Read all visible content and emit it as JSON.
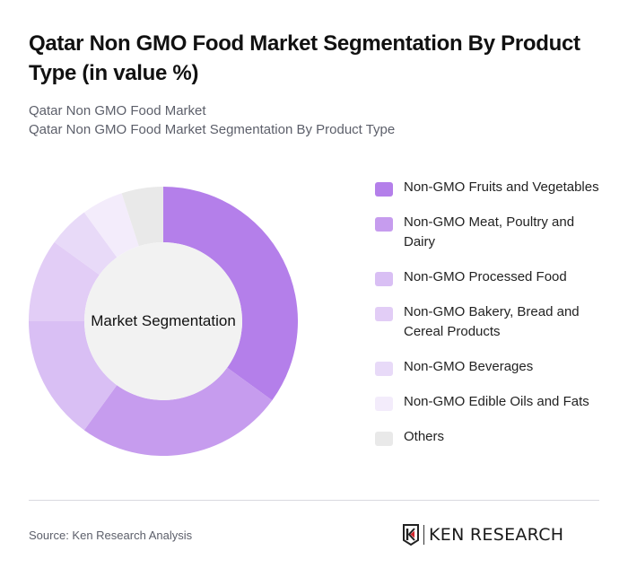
{
  "header": {
    "title": "Qatar Non GMO Food Market Segmentation By Product Type (in value %)",
    "subtitle_line1": "Qatar Non GMO Food Market",
    "subtitle_line2": "Qatar Non GMO Food Market Segmentation By Product Type"
  },
  "chart_data": {
    "type": "pie",
    "subtype": "donut",
    "title": "Qatar Non GMO Food Market Segmentation By Product Type (in value %)",
    "center_label": "Market Segmentation",
    "categories": [
      "Non-GMO Fruits and Vegetables",
      "Non-GMO Meat, Poultry and Dairy",
      "Non-GMO Processed Food",
      "Non-GMO Bakery, Bread and Cereal Products",
      "Non-GMO Beverages",
      "Non-GMO Edible Oils and Fats",
      "Others"
    ],
    "values": [
      35,
      25,
      15,
      10,
      5,
      5,
      5
    ],
    "colors": [
      "#b47fea",
      "#c69cee",
      "#d9bff4",
      "#e2cdf6",
      "#e8daf8",
      "#f3ecfb",
      "#e9e9e9"
    ],
    "legend_position": "right",
    "start_angle_deg": 0,
    "direction": "clockwise"
  },
  "legend": {
    "items": [
      {
        "label": "Non-GMO Fruits and Vegetables",
        "color": "#b47fea"
      },
      {
        "label": "Non-GMO Meat, Poultry and Dairy",
        "color": "#c69cee"
      },
      {
        "label": "Non-GMO Processed Food",
        "color": "#d9bff4"
      },
      {
        "label": "Non-GMO Bakery, Bread and Cereal Products",
        "color": "#e2cdf6"
      },
      {
        "label": "Non-GMO Beverages",
        "color": "#e8daf8"
      },
      {
        "label": "Non-GMO Edible Oils and Fats",
        "color": "#f3ecfb"
      },
      {
        "label": "Others",
        "color": "#e9e9e9"
      }
    ]
  },
  "footer": {
    "source": "Source: Ken Research Analysis",
    "logo_text": "KEN RESEARCH",
    "logo_icon": "ken-research-logo-icon"
  }
}
